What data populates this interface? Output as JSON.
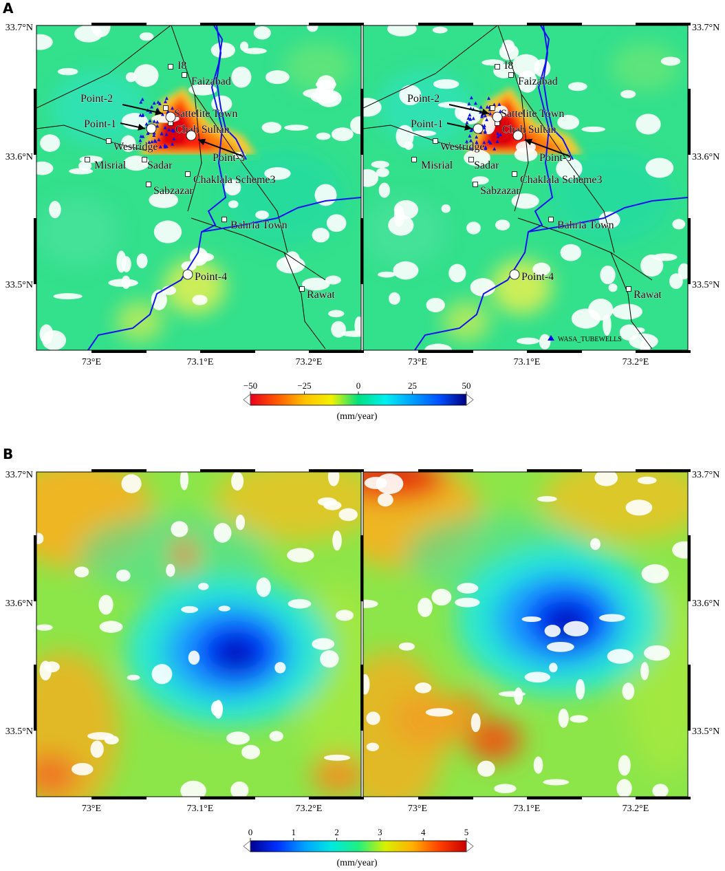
{
  "panels": [
    {
      "letter": "A",
      "maps": [
        {
          "id": "A-left",
          "show_legend": false
        },
        {
          "id": "A-right",
          "show_legend": true
        }
      ],
      "colorbar": {
        "ticks": [
          "−50",
          "−25",
          "0",
          "25",
          "50"
        ],
        "unit": "(mm/year)",
        "colors": [
          "#e8001c",
          "#ff5a00",
          "#ffc000",
          "#f2f200",
          "#00e080",
          "#00f0f0",
          "#00a0ff",
          "#0050ff",
          "#000080"
        ]
      }
    },
    {
      "letter": "B",
      "maps": [
        {
          "id": "B-left"
        },
        {
          "id": "B-right"
        }
      ],
      "colorbar": {
        "ticks": [
          "0",
          "1",
          "2",
          "3",
          "4",
          "5"
        ],
        "unit": "(mm/year)",
        "colors": [
          "#000090",
          "#0030ff",
          "#00a0ff",
          "#00e8e0",
          "#20f080",
          "#d8f000",
          "#ffb000",
          "#ff4000",
          "#c80000"
        ]
      }
    }
  ],
  "axes": {
    "lat_ticks": [
      "33.7°N",
      "33.6°N",
      "33.5°N"
    ],
    "lon_ticks": [
      "73°E",
      "73.1°E",
      "73.2°E"
    ]
  },
  "places": [
    {
      "label": "I8"
    },
    {
      "label": "Faizabad"
    },
    {
      "label": "Sattelite Town"
    },
    {
      "label": "Chah Sultan"
    },
    {
      "label": "Westridge"
    },
    {
      "label": "Misrial"
    },
    {
      "label": "Sadar"
    },
    {
      "label": "Chaklala Scheme3"
    },
    {
      "label": "Sabzazar"
    },
    {
      "label": "Bahria Town"
    },
    {
      "label": "Rawat"
    }
  ],
  "points": [
    {
      "label": "Point-1"
    },
    {
      "label": "Point-2"
    },
    {
      "label": "Point-3"
    },
    {
      "label": "Point-4"
    }
  ],
  "legend": {
    "label": "WASA_TUBEWELLS",
    "color": "#0000ff"
  }
}
